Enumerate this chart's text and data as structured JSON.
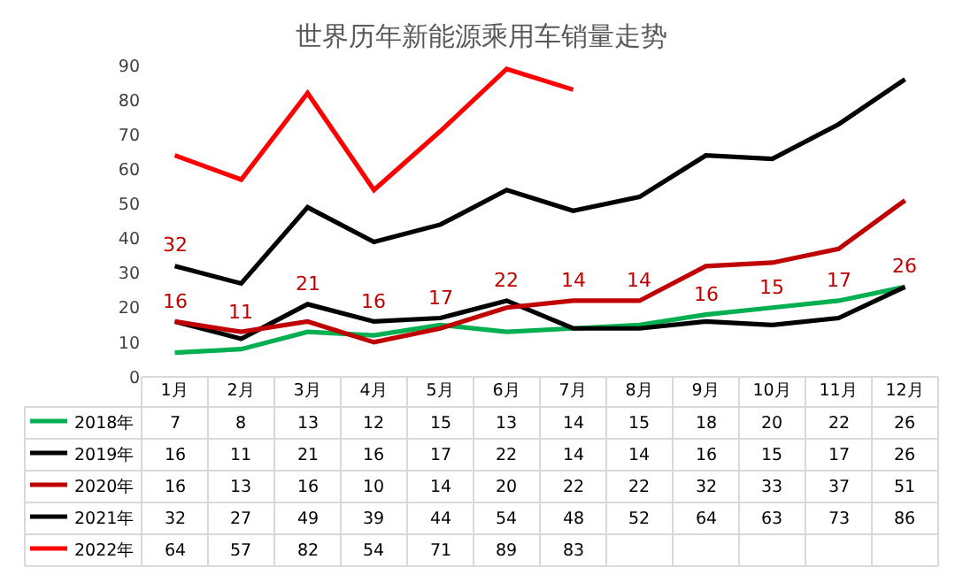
{
  "chart_data": {
    "type": "line",
    "title": "世界历年新能源乘用车销量走势",
    "categories": [
      "1月",
      "2月",
      "3月",
      "4月",
      "5月",
      "6月",
      "7月",
      "8月",
      "9月",
      "10月",
      "11月",
      "12月"
    ],
    "series": [
      {
        "name": "2018年",
        "color": "#00b050",
        "values": [
          7,
          8,
          13,
          12,
          15,
          13,
          14,
          15,
          18,
          20,
          22,
          26
        ]
      },
      {
        "name": "2019年",
        "color": "#000000",
        "values": [
          16,
          11,
          21,
          16,
          17,
          22,
          14,
          14,
          16,
          15,
          17,
          26
        ]
      },
      {
        "name": "2020年",
        "color": "#c00000",
        "values": [
          16,
          13,
          16,
          10,
          14,
          20,
          22,
          22,
          32,
          33,
          37,
          51
        ]
      },
      {
        "name": "2021年",
        "color": "#000000",
        "values": [
          32,
          27,
          49,
          39,
          44,
          54,
          48,
          52,
          64,
          63,
          73,
          86
        ]
      },
      {
        "name": "2022年",
        "color": "#ff0000",
        "values": [
          64,
          57,
          82,
          54,
          71,
          89,
          83,
          null,
          null,
          null,
          null,
          null
        ]
      }
    ],
    "ylim": [
      0,
      90
    ],
    "yticks": [
      0,
      10,
      20,
      30,
      40,
      50,
      60,
      70,
      80,
      90
    ],
    "data_labels": true,
    "legend": "bottom",
    "marker": "none",
    "line_style": "solid",
    "annotations": [
      {
        "text": "32",
        "x": "1月",
        "y": 32
      },
      {
        "text": "16",
        "x": "1月",
        "y": 16
      },
      {
        "text": "11",
        "x": "2月",
        "y": 11
      },
      {
        "text": "21",
        "x": "3月",
        "y": 21
      },
      {
        "text": "16",
        "x": "4月",
        "y": 16
      },
      {
        "text": "17",
        "x": "5月",
        "y": 17
      },
      {
        "text": "22",
        "x": "6月",
        "y": 22
      },
      {
        "text": "14",
        "x": "7月",
        "y": 14
      },
      {
        "text": "14",
        "x": "8月",
        "y": 14
      },
      {
        "text": "16",
        "x": "9月",
        "y": 16
      },
      {
        "text": "15",
        "x": "10月",
        "y": 15
      },
      {
        "text": "17",
        "x": "11月",
        "y": 17
      },
      {
        "text": "26",
        "x": "12月",
        "y": 26
      }
    ]
  }
}
